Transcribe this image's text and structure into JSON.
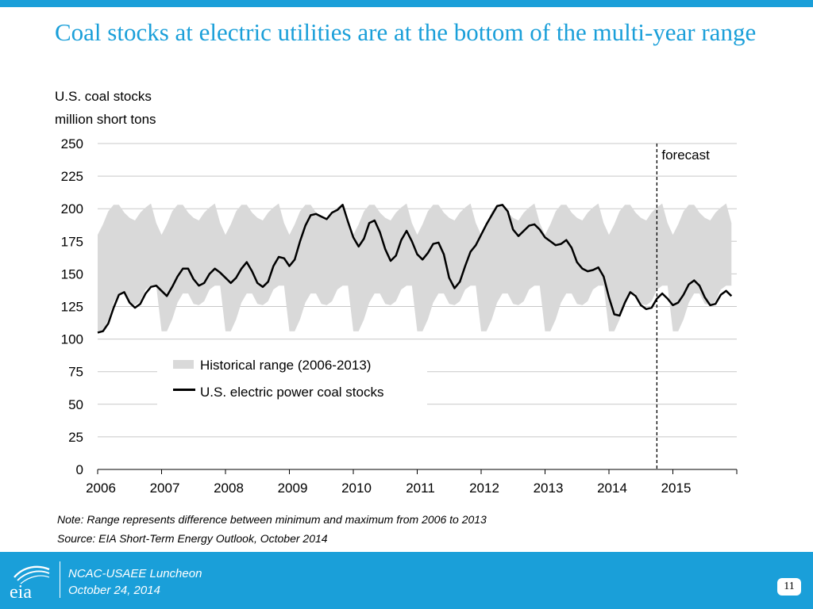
{
  "slide": {
    "title": "Coal stocks at electric utilities are at the bottom of the multi-year range",
    "page_number": "11",
    "accent_color": "#1a9fd9"
  },
  "chart_data": {
    "type": "area",
    "title": "U.S. coal stocks",
    "ylabel": "million short tons",
    "ylim": [
      0,
      250
    ],
    "yticks": [
      "0",
      "25",
      "50",
      "75",
      "100",
      "125",
      "150",
      "175",
      "200",
      "225",
      "250"
    ],
    "xticks": [
      "2006",
      "2007",
      "2008",
      "2009",
      "2010",
      "2011",
      "2012",
      "2013",
      "2014",
      "2015"
    ],
    "x_range": [
      2006,
      2016
    ],
    "grid": true,
    "legend_position": "center-left",
    "forecast_label": "forecast",
    "forecast_start": 2014.75,
    "series": [
      {
        "name": "Historical range (2006-2013)",
        "kind": "band",
        "color": "#d9d9d9",
        "min_monthly": [
          106,
          106,
          115,
          128,
          135,
          135,
          127,
          126,
          129,
          138,
          141,
          141
        ],
        "max_monthly": [
          180,
          188,
          198,
          203,
          203,
          197,
          193,
          191,
          197,
          201,
          204,
          189
        ]
      },
      {
        "name": "U.S. electric power coal stocks",
        "kind": "line",
        "color": "#000000",
        "start": 2006.0,
        "step": 0.083333,
        "values": [
          105,
          106,
          112,
          124,
          134,
          136,
          128,
          124,
          127,
          135,
          140,
          141,
          137,
          133,
          140,
          148,
          154,
          154,
          146,
          141,
          143,
          150,
          154,
          151,
          147,
          143,
          147,
          154,
          159,
          152,
          143,
          140,
          144,
          156,
          163,
          162,
          156,
          161,
          175,
          187,
          195,
          196,
          194,
          192,
          197,
          199,
          203,
          190,
          178,
          171,
          177,
          189,
          191,
          182,
          169,
          160,
          164,
          176,
          183,
          175,
          165,
          161,
          166,
          173,
          174,
          165,
          147,
          139,
          144,
          156,
          167,
          172,
          180,
          188,
          195,
          202,
          203,
          198,
          184,
          179,
          183,
          187,
          188,
          184,
          178,
          175,
          172,
          173,
          176,
          170,
          159,
          154,
          152,
          153,
          155,
          148,
          132,
          119,
          118,
          128,
          136,
          133,
          126,
          123,
          124,
          131,
          135,
          131,
          126,
          128,
          134,
          142,
          145,
          141,
          132,
          126,
          127,
          134,
          137,
          133
        ]
      }
    ]
  },
  "notes": {
    "note": "Note: Range represents difference between minimum and maximum from 2006 to 2013",
    "source": "Source: EIA Short-Term Energy Outlook, October 2014"
  },
  "footer": {
    "logo_text": "eia",
    "event": "NCAC-USAEE Luncheon",
    "date": "October 24, 2014"
  }
}
